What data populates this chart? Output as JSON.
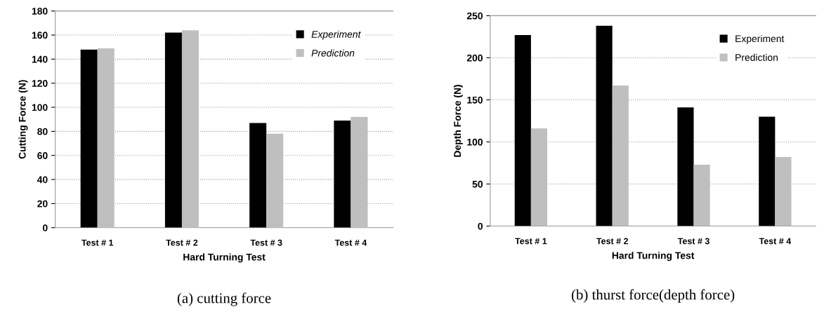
{
  "chart_data": [
    {
      "type": "bar",
      "xlabel": "Hard Turning Test",
      "ylabel": "Cutting Force (N)",
      "categories": [
        "Test # 1",
        "Test # 2",
        "Test # 3",
        "Test # 4"
      ],
      "series": [
        {
          "name": "Experiment",
          "color": "#000000",
          "values": [
            148,
            162,
            87,
            89
          ]
        },
        {
          "name": "Prediction",
          "color": "#bfbfbf",
          "values": [
            149,
            164,
            78,
            92
          ]
        }
      ],
      "ylim": [
        0,
        180
      ],
      "yticks": [
        0,
        20,
        40,
        60,
        80,
        100,
        120,
        140,
        160,
        180
      ],
      "grid": "y",
      "legend": "top right",
      "annotations": [
        "(a) cutting force"
      ]
    },
    {
      "type": "bar",
      "xlabel": "Hard Turning Test",
      "ylabel": "Depth Force (N)",
      "categories": [
        "Test # 1",
        "Test # 2",
        "Test # 3",
        "Test # 4"
      ],
      "series": [
        {
          "name": "Experiment",
          "color": "#000000",
          "values": [
            227,
            238,
            141,
            130
          ]
        },
        {
          "name": "Prediction",
          "color": "#bfbfbf",
          "values": [
            116,
            167,
            73,
            82
          ]
        }
      ],
      "ylim": [
        0,
        250
      ],
      "yticks": [
        0,
        50,
        100,
        150,
        200,
        250
      ],
      "grid": "y",
      "legend": "top right",
      "annotations": [
        "(b) thurst force(depth force)"
      ]
    }
  ]
}
